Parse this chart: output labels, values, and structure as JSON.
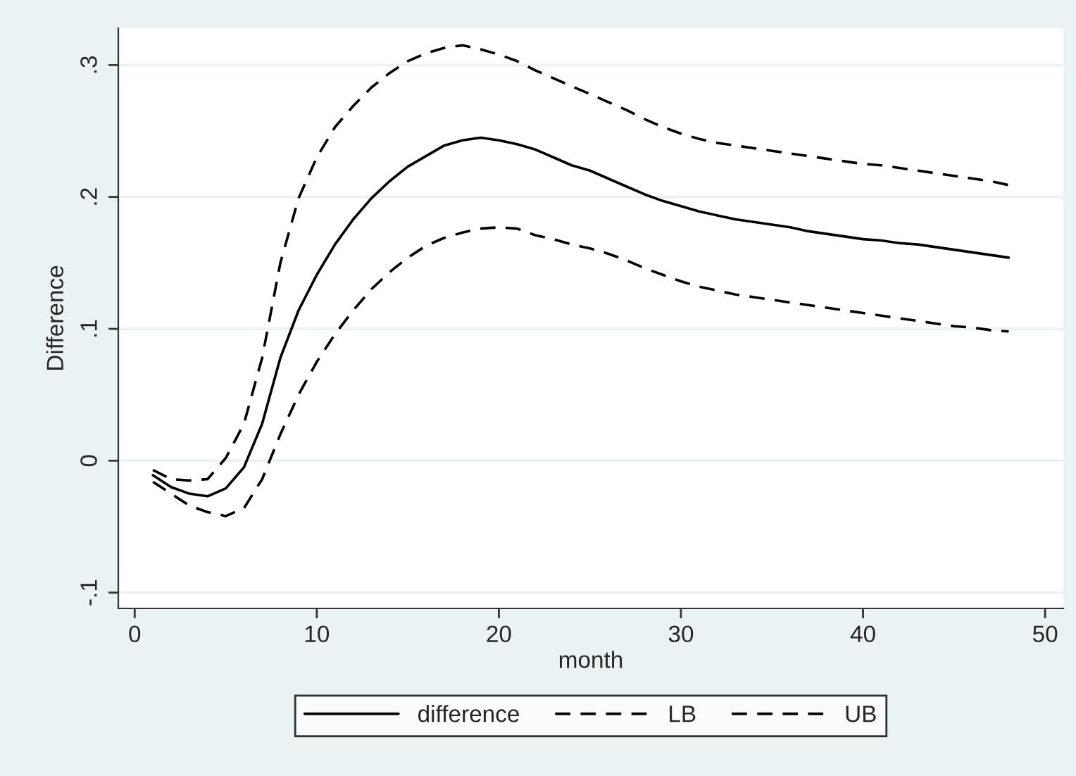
{
  "chart_data": {
    "type": "line",
    "xlabel": "month",
    "ylabel": "Difference",
    "x": [
      1,
      2,
      3,
      4,
      5,
      6,
      7,
      8,
      9,
      10,
      11,
      12,
      13,
      14,
      15,
      16,
      17,
      18,
      19,
      20,
      21,
      22,
      23,
      24,
      25,
      26,
      27,
      28,
      29,
      30,
      31,
      32,
      33,
      34,
      35,
      36,
      37,
      38,
      39,
      40,
      41,
      42,
      43,
      44,
      45,
      46,
      47,
      48
    ],
    "series": [
      {
        "name": "difference",
        "color": "#000000",
        "line_style": "solid",
        "values": [
          -0.011,
          -0.02,
          -0.025,
          -0.027,
          -0.021,
          -0.005,
          0.028,
          0.078,
          0.114,
          0.141,
          0.164,
          0.183,
          0.199,
          0.212,
          0.223,
          0.231,
          0.239,
          0.243,
          0.245,
          0.243,
          0.24,
          0.236,
          0.23,
          0.224,
          0.22,
          0.214,
          0.208,
          0.202,
          0.197,
          0.193,
          0.189,
          0.186,
          0.183,
          0.181,
          0.179,
          0.177,
          0.174,
          0.172,
          0.17,
          0.168,
          0.167,
          0.165,
          0.164,
          0.162,
          0.16,
          0.158,
          0.156,
          0.154
        ]
      },
      {
        "name": "LB",
        "color": "#000000",
        "line_style": "dashed",
        "values": [
          -0.016,
          -0.025,
          -0.034,
          -0.039,
          -0.042,
          -0.036,
          -0.014,
          0.02,
          0.05,
          0.075,
          0.096,
          0.114,
          0.13,
          0.143,
          0.154,
          0.163,
          0.169,
          0.173,
          0.176,
          0.177,
          0.176,
          0.171,
          0.168,
          0.164,
          0.161,
          0.157,
          0.152,
          0.146,
          0.141,
          0.136,
          0.132,
          0.129,
          0.126,
          0.124,
          0.122,
          0.12,
          0.118,
          0.116,
          0.114,
          0.112,
          0.11,
          0.108,
          0.106,
          0.104,
          0.102,
          0.101,
          0.099,
          0.098
        ]
      },
      {
        "name": "UB",
        "color": "#000000",
        "line_style": "dashed",
        "values": [
          -0.007,
          -0.014,
          -0.015,
          -0.014,
          0.002,
          0.028,
          0.078,
          0.15,
          0.199,
          0.23,
          0.253,
          0.269,
          0.283,
          0.294,
          0.303,
          0.309,
          0.313,
          0.315,
          0.312,
          0.308,
          0.303,
          0.296,
          0.29,
          0.284,
          0.278,
          0.272,
          0.266,
          0.259,
          0.253,
          0.248,
          0.244,
          0.241,
          0.239,
          0.237,
          0.235,
          0.233,
          0.231,
          0.229,
          0.227,
          0.225,
          0.224,
          0.222,
          0.22,
          0.218,
          0.216,
          0.214,
          0.212,
          0.209
        ]
      }
    ],
    "xlim": [
      -0.9,
      51
    ],
    "xticks": [
      0,
      10,
      20,
      30,
      40,
      50
    ],
    "ylim": [
      -0.112,
      0.328
    ],
    "yticks": [
      {
        "value": -0.1,
        "label": "-.1"
      },
      {
        "value": 0,
        "label": "0"
      },
      {
        "value": 0.1,
        "label": ".1"
      },
      {
        "value": 0.2,
        "label": ".2"
      },
      {
        "value": 0.3,
        "label": ".3"
      }
    ],
    "grid": "y",
    "legend": "bottom"
  }
}
